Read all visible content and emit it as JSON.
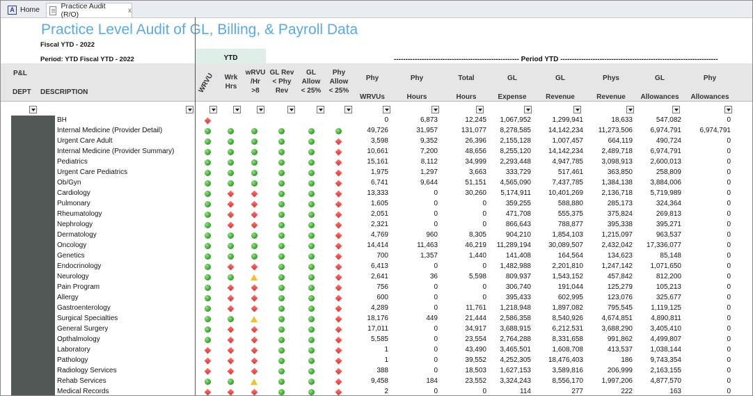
{
  "tabs": {
    "home": "Home",
    "audit": "Practice Audit (R/O)",
    "close": "x"
  },
  "report": {
    "title": "Practice Level Audit of GL, Billing, & Payroll Data",
    "fiscal": "Fiscal YTD - 2022",
    "period": "Period: YTD Fiscal YTD - 2022",
    "ytd": "YTD",
    "period_ytd": "------------------------------------------------------ Period YTD --------------------------------------------------------------------"
  },
  "headers": {
    "pl": "P&L",
    "dept": "DEPT",
    "description": "DESCRIPTION",
    "wrvu": "WRVU",
    "wrk_hrs": [
      "Wrk",
      "Hrs"
    ],
    "wrvu_hr": [
      "wRVU",
      "/Hr",
      ">8"
    ],
    "gl_rev": [
      "GL Rev",
      "< Phy",
      "Rev"
    ],
    "gl_allow": [
      "GL",
      "Allow",
      "< 25%"
    ],
    "phy_allow": [
      "Phy",
      "Allow",
      "< 25%"
    ],
    "phy_wrvus": [
      "Phy",
      "WRVUs"
    ],
    "phy_hours": [
      "Phy",
      "Hours"
    ],
    "total_hours": [
      "Total",
      "Hours"
    ],
    "gl_expense": [
      "GL",
      "Expense"
    ],
    "gl_revenue": [
      "GL",
      "Revenue"
    ],
    "phys_revenue": [
      "Phys",
      "Revenue"
    ],
    "gl_allowances": [
      "GL",
      "Allowances"
    ],
    "phy_allowances": [
      "Phy",
      "Allowances"
    ]
  },
  "rows": [
    {
      "d": "BH",
      "i": [
        "r",
        "",
        "",
        "",
        "",
        ""
      ],
      "v": [
        "0",
        "6,873",
        "12,245",
        "1,067,952",
        "1,299,941",
        "18,633",
        "547,082",
        "0"
      ]
    },
    {
      "d": "Internal Medicine (Provider Detail)",
      "i": [
        "g",
        "g",
        "g",
        "g",
        "g",
        "g"
      ],
      "v": [
        "49,726",
        "31,957",
        "131,077",
        "8,278,585",
        "14,142,234",
        "11,273,506",
        "6,974,791",
        "6,974,791"
      ]
    },
    {
      "d": "Urgent Care Adult",
      "i": [
        "g",
        "g",
        "g",
        "g",
        "g",
        "r"
      ],
      "v": [
        "3,598",
        "9,352",
        "26,396",
        "2,155,128",
        "1,007,457",
        "664,119",
        "490,724",
        "0"
      ]
    },
    {
      "d": "Internal Medicine (Provider Summary)",
      "i": [
        "g",
        "g",
        "g",
        "g",
        "g",
        "r"
      ],
      "v": [
        "10,661",
        "7,200",
        "48,656",
        "8,255,120",
        "14,142,234",
        "2,489,718",
        "6,974,791",
        "0"
      ]
    },
    {
      "d": "Pediatrics",
      "i": [
        "g",
        "g",
        "g",
        "g",
        "g",
        "r"
      ],
      "v": [
        "15,161",
        "8,112",
        "34,999",
        "2,293,448",
        "4,947,785",
        "3,098,913",
        "2,600,013",
        "0"
      ]
    },
    {
      "d": "Urgent Care Pediatrics",
      "i": [
        "g",
        "g",
        "g",
        "g",
        "g",
        "r"
      ],
      "v": [
        "1,975",
        "1,297",
        "3,663",
        "333,729",
        "517,461",
        "363,850",
        "258,809",
        "0"
      ]
    },
    {
      "d": "Ob/Gyn",
      "i": [
        "g",
        "g",
        "g",
        "g",
        "g",
        "r"
      ],
      "v": [
        "6,741",
        "9,644",
        "51,151",
        "4,565,090",
        "7,437,785",
        "1,384,138",
        "3,884,006",
        "0"
      ]
    },
    {
      "d": "Cardiology",
      "i": [
        "g",
        "r",
        "r",
        "g",
        "g",
        "r"
      ],
      "v": [
        "13,333",
        "0",
        "30,260",
        "5,174,911",
        "10,401,269",
        "2,136,718",
        "5,719,989",
        "0"
      ]
    },
    {
      "d": "Pulmonary",
      "i": [
        "g",
        "r",
        "r",
        "g",
        "g",
        "r"
      ],
      "v": [
        "1,605",
        "0",
        "0",
        "359,255",
        "588,880",
        "285,173",
        "324,364",
        "0"
      ]
    },
    {
      "d": "Rheumatology",
      "i": [
        "g",
        "r",
        "r",
        "g",
        "g",
        "r"
      ],
      "v": [
        "2,051",
        "0",
        "0",
        "471,708",
        "555,375",
        "375,824",
        "269,813",
        "0"
      ]
    },
    {
      "d": "Nephrology",
      "i": [
        "g",
        "r",
        "r",
        "g",
        "g",
        "r"
      ],
      "v": [
        "2,321",
        "0",
        "0",
        "866,643",
        "788,877",
        "395,338",
        "395,271",
        "0"
      ]
    },
    {
      "d": "Dermatology",
      "i": [
        "g",
        "g",
        "g",
        "g",
        "g",
        "r"
      ],
      "v": [
        "4,769",
        "960",
        "8,305",
        "904,210",
        "1,854,103",
        "1,215,097",
        "963,537",
        "0"
      ]
    },
    {
      "d": "Oncology",
      "i": [
        "g",
        "g",
        "g",
        "g",
        "g",
        "r"
      ],
      "v": [
        "14,414",
        "11,463",
        "46,219",
        "11,289,194",
        "30,089,507",
        "2,432,042",
        "17,336,077",
        "0"
      ]
    },
    {
      "d": "Genetics",
      "i": [
        "g",
        "g",
        "g",
        "g",
        "g",
        "r"
      ],
      "v": [
        "700",
        "1,357",
        "1,440",
        "141,408",
        "164,564",
        "134,623",
        "85,148",
        "0"
      ]
    },
    {
      "d": "Endocrinology",
      "i": [
        "g",
        "r",
        "r",
        "g",
        "g",
        "r"
      ],
      "v": [
        "6,413",
        "0",
        "0",
        "1,482,988",
        "2,201,810",
        "1,247,142",
        "1,071,650",
        "0"
      ]
    },
    {
      "d": "Neurology",
      "i": [
        "g",
        "g",
        "y",
        "g",
        "g",
        "r"
      ],
      "v": [
        "2,641",
        "36",
        "5,598",
        "809,937",
        "1,543,152",
        "457,842",
        "812,200",
        "0"
      ]
    },
    {
      "d": "Pain Program",
      "i": [
        "g",
        "r",
        "r",
        "g",
        "g",
        "r"
      ],
      "v": [
        "756",
        "0",
        "0",
        "306,740",
        "191,044",
        "125,279",
        "105,213",
        "0"
      ]
    },
    {
      "d": "Allergy",
      "i": [
        "g",
        "r",
        "r",
        "g",
        "g",
        "r"
      ],
      "v": [
        "600",
        "0",
        "0",
        "395,433",
        "602,995",
        "123,076",
        "325,677",
        "0"
      ]
    },
    {
      "d": "Gastroenterology",
      "i": [
        "g",
        "r",
        "r",
        "g",
        "g",
        "r"
      ],
      "v": [
        "4,289",
        "0",
        "11,761",
        "1,218,948",
        "1,897,082",
        "795,545",
        "1,119,125",
        "0"
      ]
    },
    {
      "d": "Surgical Specialties",
      "i": [
        "g",
        "g",
        "y",
        "g",
        "g",
        "r"
      ],
      "v": [
        "18,176",
        "449",
        "21,444",
        "2,586,358",
        "8,540,926",
        "4,674,851",
        "4,890,811",
        "0"
      ]
    },
    {
      "d": "General Surgery",
      "i": [
        "g",
        "r",
        "r",
        "g",
        "g",
        "r"
      ],
      "v": [
        "17,011",
        "0",
        "34,917",
        "3,688,915",
        "6,212,531",
        "3,688,290",
        "3,405,410",
        "0"
      ]
    },
    {
      "d": "Opthalmology",
      "i": [
        "g",
        "r",
        "r",
        "g",
        "g",
        "r"
      ],
      "v": [
        "5,585",
        "0",
        "23,554",
        "2,764,288",
        "8,331,658",
        "991,862",
        "4,499,807",
        "0"
      ]
    },
    {
      "d": "Laboratory",
      "i": [
        "r",
        "r",
        "r",
        "g",
        "g",
        "r"
      ],
      "v": [
        "1",
        "0",
        "43,490",
        "3,465,501",
        "1,608,708",
        "413,537",
        "1,038,144",
        "0"
      ]
    },
    {
      "d": "Pathology",
      "i": [
        "r",
        "r",
        "r",
        "g",
        "g",
        "r"
      ],
      "v": [
        "1",
        "0",
        "39,552",
        "4,252,305",
        "18,476,403",
        "186",
        "9,743,354",
        "0"
      ]
    },
    {
      "d": "Radiology Services",
      "i": [
        "r",
        "r",
        "r",
        "g",
        "g",
        "r"
      ],
      "v": [
        "388",
        "0",
        "18,503",
        "1,627,153",
        "3,589,816",
        "206,999",
        "2,163,155",
        "0"
      ]
    },
    {
      "d": "Rehab Services",
      "i": [
        "g",
        "g",
        "y",
        "g",
        "g",
        "r"
      ],
      "v": [
        "9,458",
        "184",
        "23,552",
        "3,324,243",
        "8,556,170",
        "1,997,206",
        "4,877,570",
        "0"
      ]
    },
    {
      "d": "Medical Records",
      "i": [
        "r",
        "r",
        "r",
        "g",
        "g",
        "r"
      ],
      "v": [
        "2",
        "0",
        "0",
        "114",
        "277",
        "222",
        "163",
        "0"
      ]
    }
  ]
}
